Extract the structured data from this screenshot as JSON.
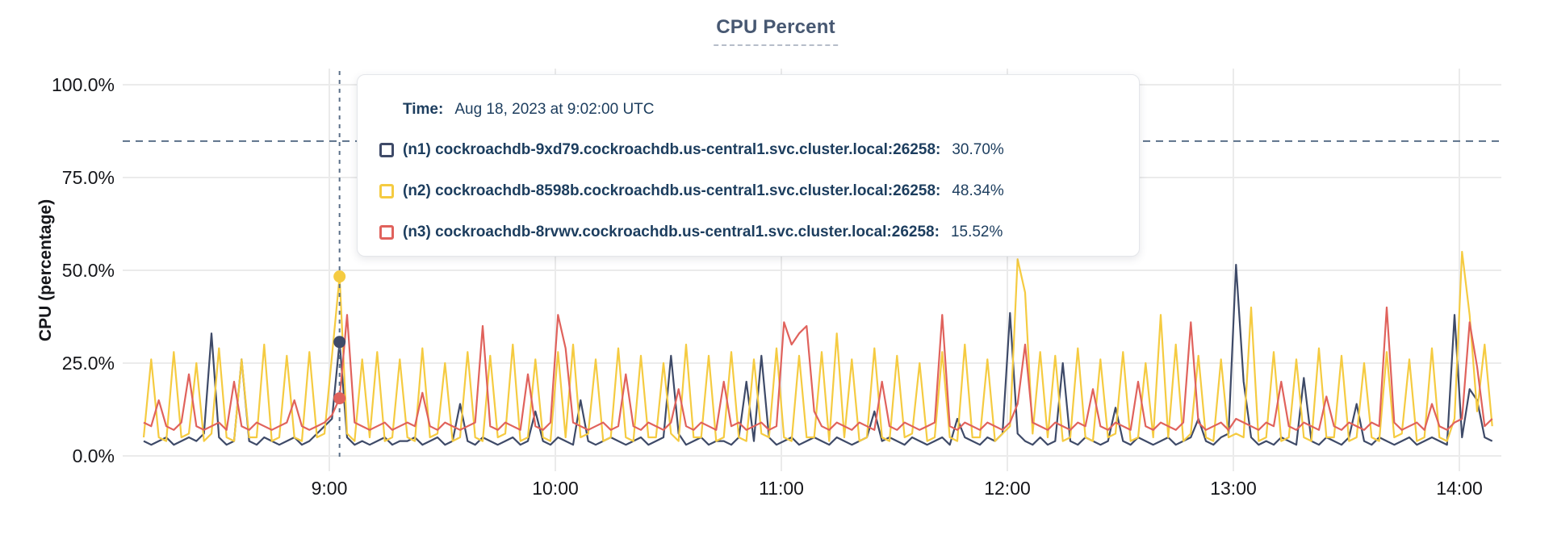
{
  "title": "CPU Percent",
  "y_axis": {
    "label": "CPU (percentage)",
    "ticks": [
      "100.0%",
      "75.0%",
      "50.0%",
      "25.0%",
      "0.0%"
    ]
  },
  "x_axis": {
    "ticks": [
      "9:00",
      "10:00",
      "11:00",
      "12:00",
      "13:00",
      "14:00"
    ]
  },
  "tooltip": {
    "time_label": "Time:",
    "time_value": "Aug 18, 2023 at 9:02:00 UTC",
    "rows": [
      {
        "id": "n1",
        "label": "(n1) cockroachdb-9xd79.cockroachdb.us-central1.svc.cluster.local:26258:",
        "value": "30.70%",
        "color": "#3e4a68"
      },
      {
        "id": "n2",
        "label": "(n2) cockroachdb-8598b.cockroachdb.us-central1.svc.cluster.local:26258:",
        "value": "48.34%",
        "color": "#f5cb41"
      },
      {
        "id": "n3",
        "label": "(n3) cockroachdb-8rvwv.cockroachdb.us-central1.svc.cluster.local:26258:",
        "value": "15.52%",
        "color": "#e0625c"
      }
    ]
  },
  "colors": {
    "grid": "#ebebeb",
    "dashed_guides": "#5b7089",
    "title_text": "#475872",
    "tooltip_text": "#1c3d5e",
    "axis_text": "#15161a"
  },
  "chart_data": {
    "type": "line",
    "title": "CPU Percent",
    "xlabel": "",
    "ylabel": "CPU (percentage)",
    "ylim": [
      0,
      100
    ],
    "y_tick_values": [
      100,
      75,
      50,
      25,
      0
    ],
    "x_ticks": [
      "9:00",
      "10:00",
      "11:00",
      "12:00",
      "13:00",
      "14:00"
    ],
    "x_start_time": "8:10",
    "x_step_minutes": 2,
    "grid": true,
    "legend_position": "hover-tooltip",
    "threshold_percent": 84.8,
    "hover": {
      "time": "Aug 18, 2023 at 9:02:00 UTC",
      "index": 26,
      "markers": [
        {
          "id": "n1",
          "value": 30.7
        },
        {
          "id": "n2",
          "value": 48.34
        },
        {
          "id": "n3",
          "value": 15.52
        }
      ]
    },
    "series": [
      {
        "id": "n1",
        "name": "(n1) cockroachdb-9xd79.cockroachdb.us-central1.svc.cluster.local:26258",
        "color": "#3e4a68",
        "values": [
          4,
          3,
          4,
          5,
          3,
          4,
          5,
          4,
          6,
          33,
          5,
          3,
          4,
          26,
          4,
          3,
          5,
          4,
          3,
          4,
          5,
          3,
          4,
          6,
          8,
          10,
          30.7,
          5,
          3,
          4,
          3,
          4,
          5,
          3,
          4,
          4,
          5,
          3,
          4,
          5,
          3,
          4,
          14,
          4,
          3,
          5,
          4,
          3,
          4,
          5,
          3,
          4,
          12,
          4,
          3,
          5,
          4,
          3,
          15,
          4,
          3,
          4,
          5,
          4,
          3,
          4,
          5,
          3,
          4,
          5,
          27,
          6,
          3,
          4,
          5,
          3,
          4,
          4,
          3,
          5,
          20,
          4,
          27,
          5,
          3,
          4,
          5,
          3,
          4,
          5,
          4,
          3,
          5,
          4,
          3,
          4,
          5,
          12,
          4,
          5,
          4,
          3,
          5,
          4,
          3,
          4,
          5,
          3,
          10,
          5,
          4,
          3,
          5,
          4,
          6,
          38.5,
          6,
          4,
          3,
          5,
          3,
          4,
          25,
          4,
          3,
          5,
          4,
          3,
          4,
          13,
          4,
          3,
          5,
          4,
          3,
          4,
          5,
          3,
          4,
          5,
          10,
          4,
          3,
          5,
          6,
          51.5,
          20,
          5,
          3,
          4,
          3,
          5,
          4,
          3,
          21,
          4,
          3,
          5,
          4,
          3,
          5,
          14,
          4,
          3,
          5,
          4,
          3,
          4,
          5,
          3,
          4,
          5,
          4,
          3,
          38,
          5,
          18,
          15,
          5,
          4
        ]
      },
      {
        "id": "n2",
        "name": "(n2) cockroachdb-8598b.cockroachdb.us-central1.svc.cluster.local:26258",
        "color": "#f5cb41",
        "values": [
          5,
          26,
          5,
          4,
          28,
          5,
          6,
          25,
          4,
          6,
          29,
          5,
          4,
          26,
          5,
          5,
          30,
          4,
          5,
          27,
          5,
          4,
          28,
          5,
          6,
          27,
          48.34,
          6,
          4,
          26,
          5,
          28,
          4,
          5,
          26,
          5,
          4,
          29,
          5,
          6,
          25,
          4,
          5,
          28,
          5,
          4,
          27,
          5,
          6,
          30,
          4,
          5,
          26,
          5,
          4,
          28,
          5,
          30,
          5,
          6,
          26,
          4,
          5,
          29,
          5,
          4,
          27,
          5,
          5,
          25,
          6,
          4,
          30,
          5,
          5,
          27,
          4,
          5,
          28,
          5,
          4,
          26,
          6,
          5,
          29,
          5,
          4,
          27,
          5,
          5,
          28,
          4,
          33,
          5,
          26,
          4,
          5,
          29,
          5,
          4,
          27,
          5,
          6,
          25,
          4,
          5,
          28,
          5,
          4,
          30,
          5,
          5,
          26,
          4,
          6,
          8,
          53,
          44,
          6,
          28,
          5,
          27,
          4,
          5,
          29,
          5,
          4,
          26,
          5,
          6,
          28,
          4,
          5,
          25,
          5,
          38,
          5,
          30,
          4,
          6,
          27,
          5,
          4,
          26,
          5,
          6,
          5,
          40,
          4,
          5,
          28,
          4,
          5,
          26,
          5,
          4,
          29,
          5,
          5,
          27,
          4,
          5,
          25,
          5,
          4,
          28,
          5,
          6,
          26,
          4,
          5,
          29,
          5,
          4,
          10,
          55,
          38,
          12,
          30,
          8
        ]
      },
      {
        "id": "n3",
        "name": "(n3) cockroachdb-8rvwv.cockroachdb.us-central1.svc.cluster.local:26258",
        "color": "#e0625c",
        "values": [
          9,
          8,
          15,
          8,
          7,
          9,
          22,
          8,
          7,
          8,
          9,
          7,
          20,
          8,
          7,
          9,
          8,
          7,
          8,
          9,
          15,
          8,
          7,
          8,
          9,
          11,
          15.52,
          38,
          9,
          8,
          7,
          8,
          9,
          7,
          8,
          9,
          8,
          17,
          8,
          7,
          9,
          8,
          7,
          8,
          9,
          35,
          8,
          7,
          9,
          8,
          7,
          22,
          8,
          7,
          9,
          38,
          29,
          9,
          8,
          7,
          8,
          9,
          7,
          8,
          22,
          8,
          7,
          9,
          8,
          7,
          9,
          18,
          8,
          7,
          9,
          8,
          7,
          20,
          8,
          9,
          7,
          8,
          9,
          7,
          8,
          36,
          30,
          33,
          35,
          12,
          8,
          7,
          9,
          8,
          7,
          9,
          8,
          7,
          20,
          8,
          7,
          9,
          8,
          7,
          8,
          9,
          38,
          8,
          7,
          9,
          8,
          7,
          9,
          8,
          7,
          9,
          14,
          30,
          9,
          8,
          7,
          9,
          8,
          7,
          9,
          8,
          18,
          8,
          7,
          9,
          8,
          7,
          20,
          8,
          7,
          9,
          8,
          7,
          9,
          36,
          9,
          7,
          8,
          9,
          7,
          10,
          9,
          8,
          7,
          9,
          8,
          20,
          8,
          7,
          9,
          8,
          7,
          16,
          8,
          7,
          9,
          8,
          7,
          9,
          8,
          40,
          9,
          7,
          8,
          9,
          7,
          14,
          8,
          7,
          9,
          10,
          36,
          24,
          8,
          10
        ]
      }
    ]
  }
}
